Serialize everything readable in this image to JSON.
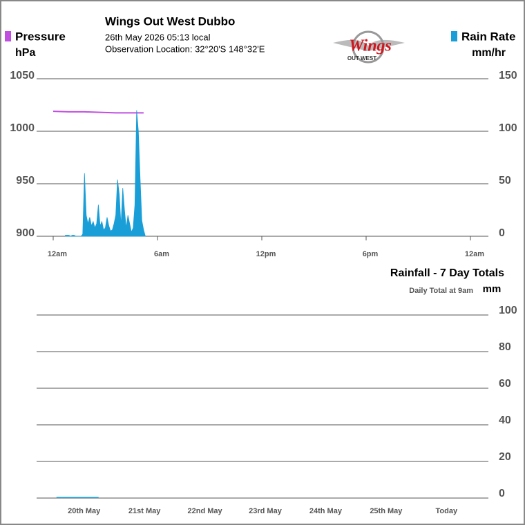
{
  "logo": {
    "text": "Wings",
    "subtext": "OUT WEST"
  },
  "chart_data": [
    {
      "type": "line",
      "title": "Wings Out West Dubbo",
      "subtitle": [
        "26th May 2026  05:13 local",
        "Observation Location: 32°20'S 148°32'E"
      ],
      "y_label": "hPa",
      "y2_label": "mm/hr",
      "xlim": [
        0,
        24
      ],
      "xticks": [
        {
          "value": 0,
          "label": "12am"
        },
        {
          "value": 6,
          "label": "6am"
        },
        {
          "value": 12,
          "label": "12pm"
        },
        {
          "value": 18,
          "label": "6pm"
        },
        {
          "value": 24,
          "label": "12am"
        }
      ],
      "ylim": [
        900,
        1050
      ],
      "yticks": [
        900,
        950,
        1000,
        1050
      ],
      "y2lim": [
        0,
        150
      ],
      "y2ticks": [
        0,
        50,
        100,
        150
      ],
      "grid": true,
      "series": [
        {
          "name": "Pressure",
          "color": "#c04ee0",
          "x": [
            0,
            0.9,
            1.8,
            2.7,
            3.6,
            4.5,
            5.2
          ],
          "values": [
            1019,
            1018.5,
            1018.5,
            1018,
            1017.5,
            1017.5,
            1017.5
          ]
        },
        {
          "name": "Rain Rate",
          "color": "#1a9ed8",
          "axis": "y2",
          "area": true,
          "x": [
            0.7,
            0.8,
            0.9,
            1.0,
            1.1,
            1.2,
            1.3,
            1.4,
            1.5,
            1.6,
            1.7,
            1.8,
            1.9,
            2.0,
            2.1,
            2.2,
            2.3,
            2.4,
            2.5,
            2.6,
            2.7,
            2.8,
            2.9,
            3.0,
            3.1,
            3.2,
            3.3,
            3.4,
            3.5,
            3.6,
            3.7,
            3.8,
            3.9,
            4.0,
            4.1,
            4.2,
            4.3,
            4.4,
            4.5,
            4.6,
            4.7,
            4.8,
            4.9,
            5.0,
            5.1,
            5.2,
            5.3
          ],
          "values": [
            1,
            1,
            1,
            0,
            1,
            1,
            0,
            0,
            0,
            0,
            2,
            60,
            20,
            12,
            18,
            10,
            14,
            8,
            12,
            30,
            10,
            14,
            6,
            8,
            18,
            10,
            5,
            6,
            12,
            20,
            54,
            40,
            10,
            46,
            25,
            8,
            20,
            12,
            4,
            8,
            30,
            120,
            100,
            55,
            15,
            6,
            0
          ]
        }
      ]
    },
    {
      "type": "bar",
      "title": "Rainfall - 7 Day Totals",
      "subtitle": "Daily Total at 9am",
      "y_label": "mm",
      "categories": [
        "20th May",
        "21st May",
        "22nd May",
        "23rd May",
        "24th May",
        "25th May",
        "Today"
      ],
      "values": [
        0.6,
        0,
        0,
        0,
        0,
        0,
        0
      ],
      "color": "#1a9ed8",
      "ylim": [
        0,
        100
      ],
      "yticks": [
        0,
        20,
        40,
        60,
        80,
        100
      ],
      "grid": true
    }
  ]
}
